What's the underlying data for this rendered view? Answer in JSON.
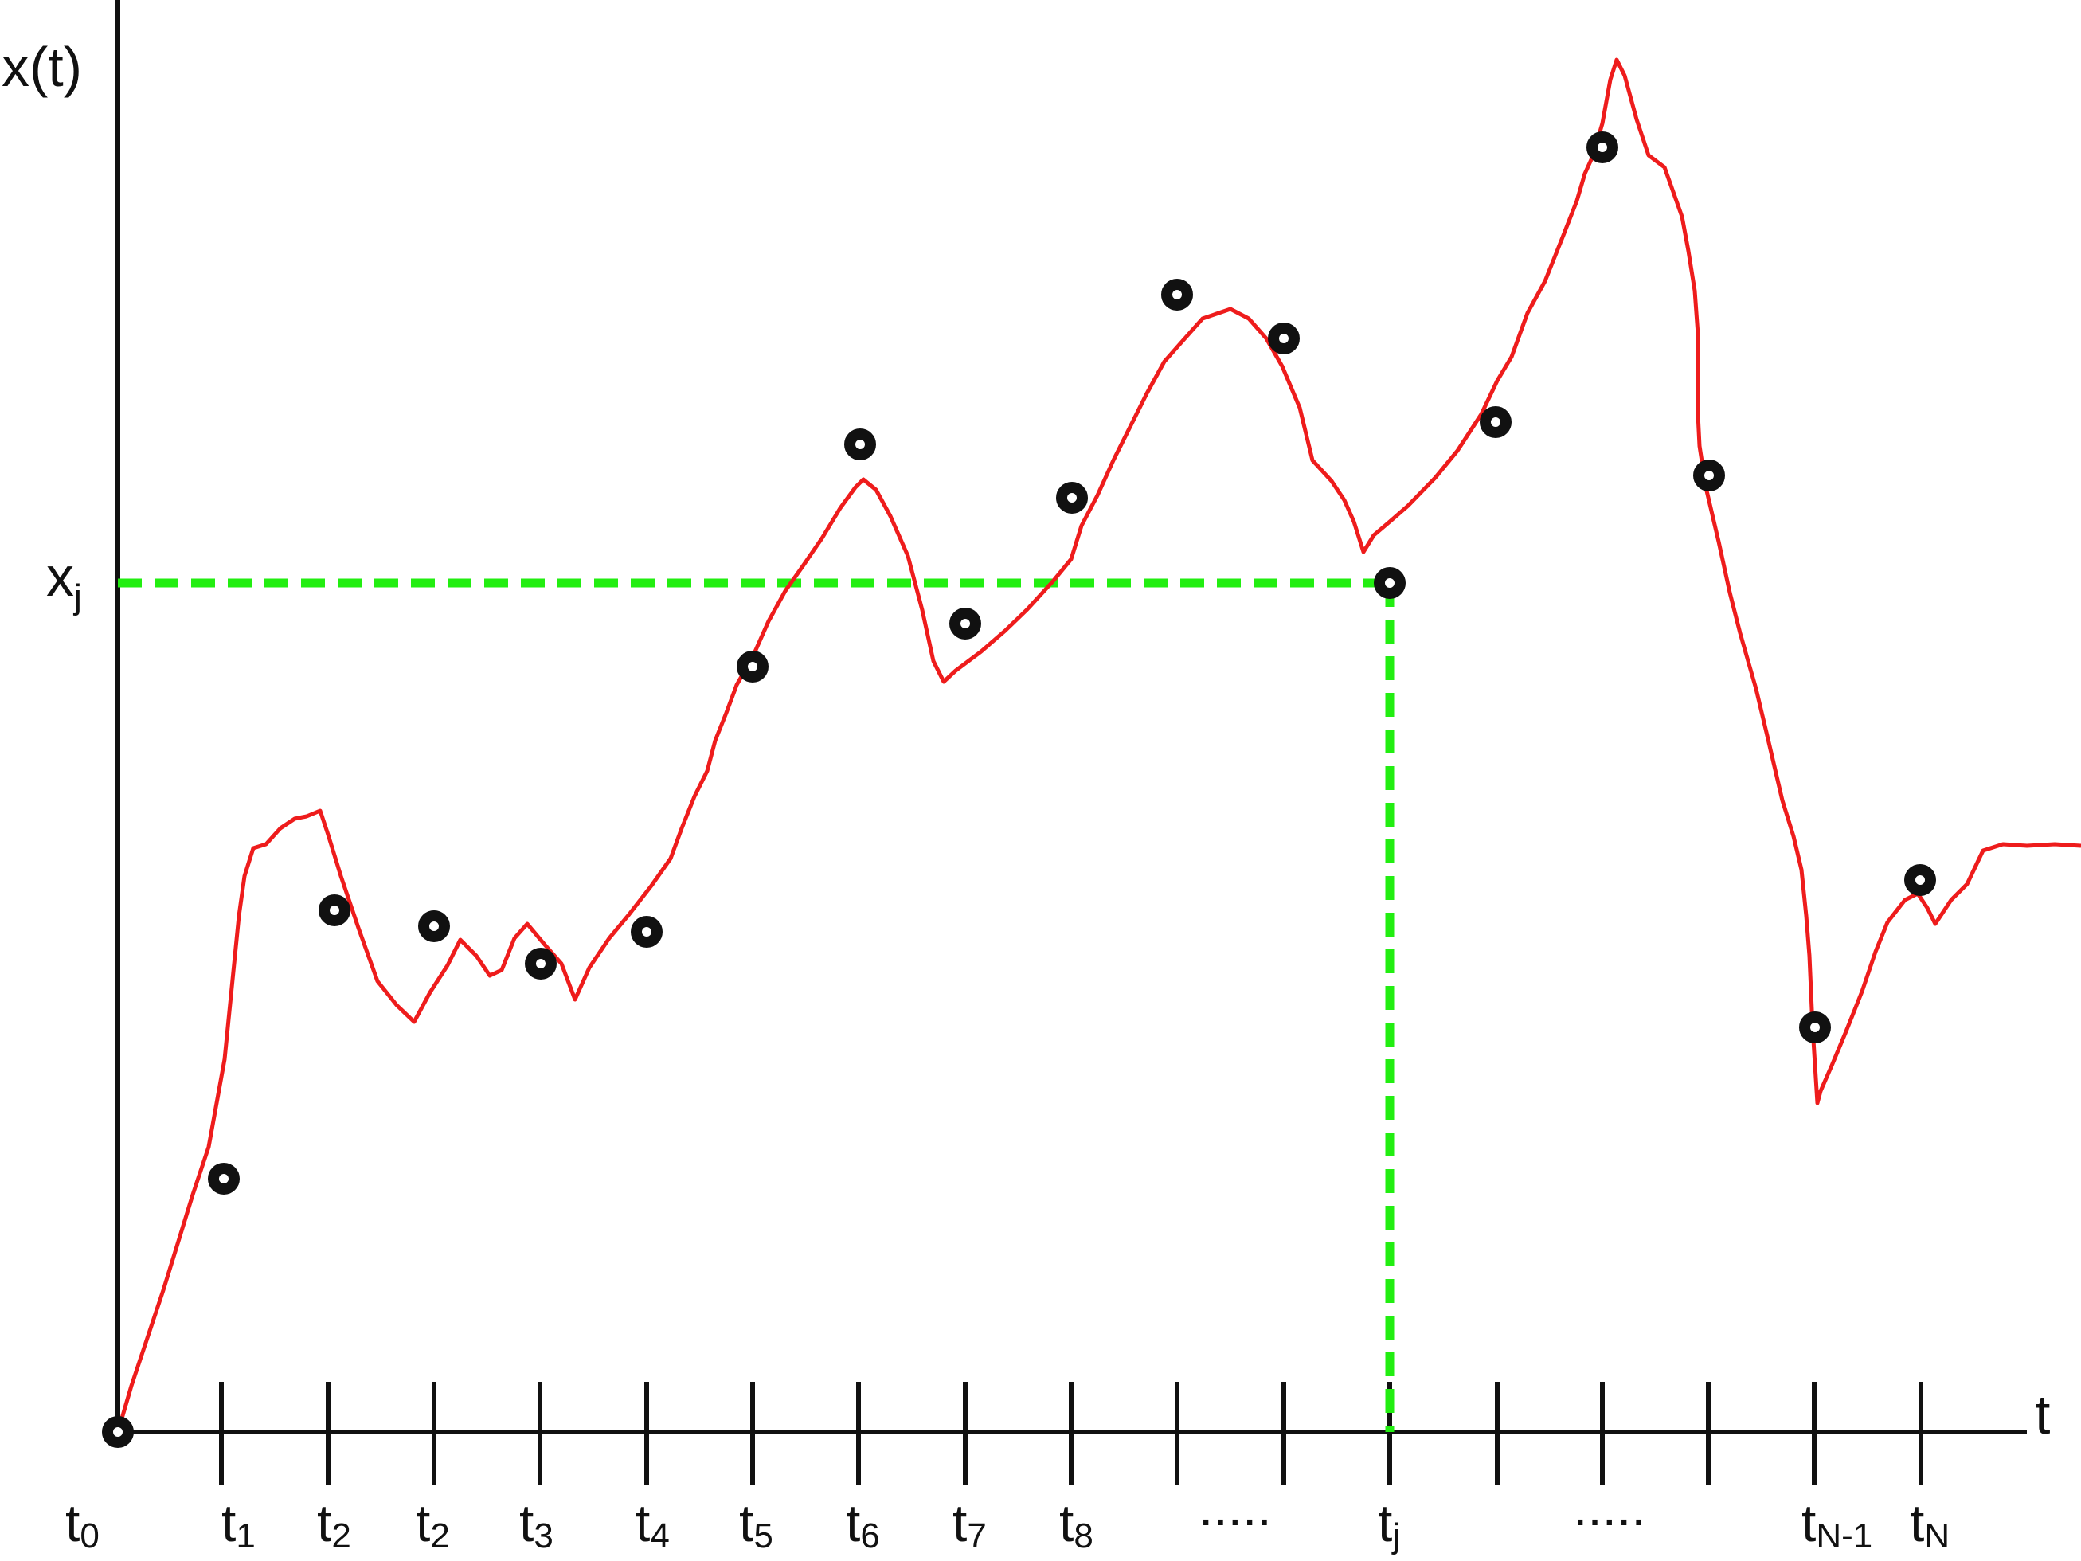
{
  "colors": {
    "axis": "#111111",
    "curve": "#ee1c1c",
    "guide": "#22ee11",
    "marker": "#111111",
    "marker_center": "#ffffff",
    "background": "#ffffff"
  },
  "axes": {
    "y_label": "x(t)",
    "x_label": "t",
    "x_j_label": {
      "main": "x",
      "sub": "j"
    }
  },
  "ticks": [
    {
      "main": "t",
      "sub": "0"
    },
    {
      "main": "t",
      "sub": "1"
    },
    {
      "main": "t",
      "sub": "2"
    },
    {
      "main": "t",
      "sub": "2"
    },
    {
      "main": "t",
      "sub": "3"
    },
    {
      "main": "t",
      "sub": "4"
    },
    {
      "main": "t",
      "sub": "5"
    },
    {
      "main": "t",
      "sub": "6"
    },
    {
      "main": "t",
      "sub": "7"
    },
    {
      "main": "t",
      "sub": "8"
    },
    {
      "main": ".....",
      "sub": ""
    },
    {
      "main": "t",
      "sub": "j"
    },
    {
      "main": ".....",
      "sub": ""
    },
    {
      "main": "t",
      "sub": "N-1"
    },
    {
      "main": "t",
      "sub": "N"
    }
  ]
}
